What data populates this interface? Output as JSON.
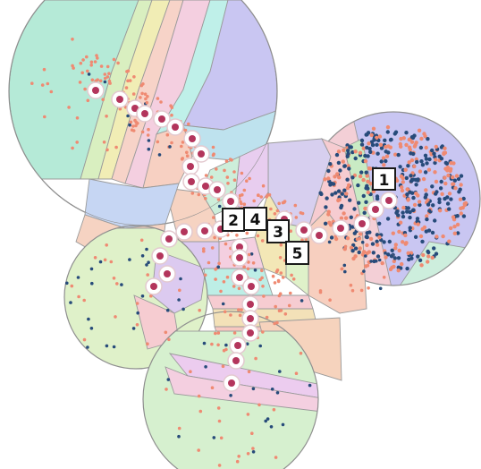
{
  "markers": [
    {
      "id": "marker-1",
      "label": "1"
    },
    {
      "id": "marker-2",
      "label": "2"
    },
    {
      "id": "marker-3",
      "label": "3"
    },
    {
      "id": "marker-4",
      "label": "4"
    },
    {
      "id": "marker-5",
      "label": "5"
    }
  ],
  "colors": {
    "point_salmon": "#ef8a72",
    "point_navy": "#274b7a",
    "waypoint": "#b3355c",
    "cell_outline": "#9a9a9a"
  }
}
